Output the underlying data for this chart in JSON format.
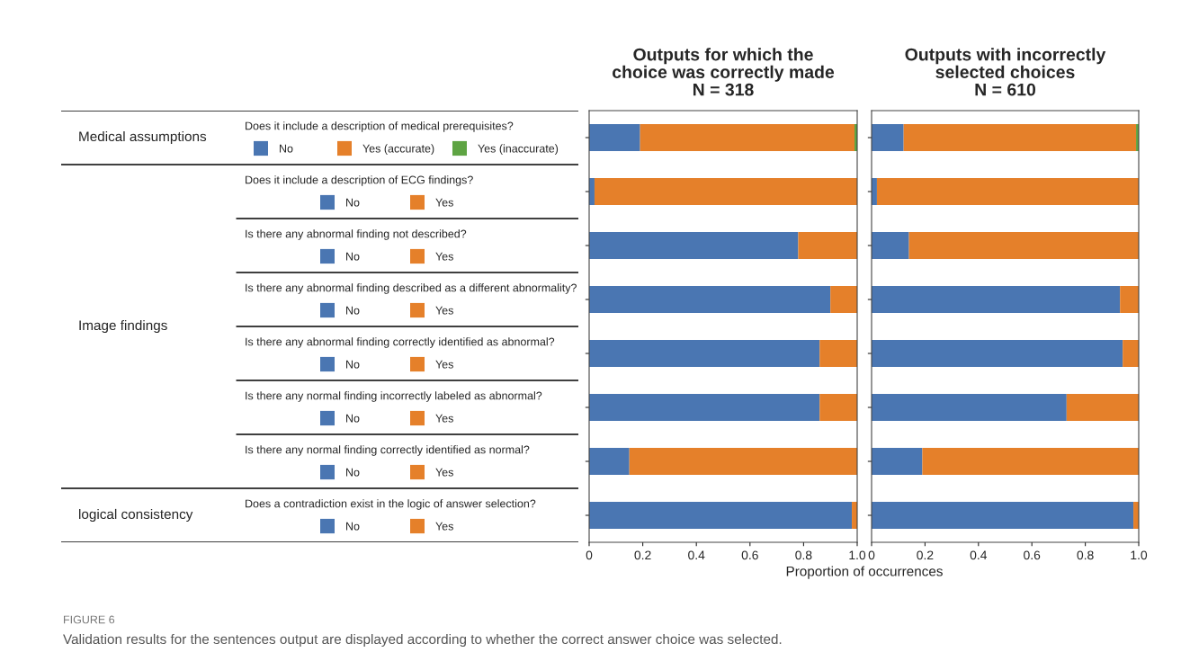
{
  "chart_data": [
    {
      "type": "other",
      "y_categories": [
        "Medical assumptions",
        "Image findings",
        "logical consistency"
      ],
      "categories": [
        "Does it include a description of medical prerequisites?",
        "Does it include a description of ECG findings?",
        "Is there any abnormal finding not described?",
        "Is there any abnormal finding described as a different abnormality?",
        "Is there any abnormal finding correctly identified as abnormal?",
        "Is there any normal finding incorrectly labeled as abnormal?",
        "Is there any normal finding correctly identified as normal?",
        "Does a contradiction exist in the logic of answer selection?"
      ],
      "colors": [
        "#4a76b2",
        "#e5802a",
        "#5ea443",
        "#e5802a"
      ],
      "annotations": [
        "No",
        "Yes (accurate)",
        "Yes (inaccurate)",
        "Yes",
        "FIGURE 6",
        "Validation results for the sentences output are displayed according to whether the correct answer choice was selected."
      ]
    },
    {
      "type": "bar",
      "orientation": "horizontal",
      "stacked": true,
      "title": "Outputs for which the\nchoice was correctly made\nN = 318",
      "xlabel": "Proportion of occurrences",
      "categories": [
        null,
        null,
        null,
        null,
        null,
        null,
        null,
        null
      ],
      "series": [
        {
          "color": "#4a76b2",
          "values": [
            0.19,
            0.02,
            0.78,
            0.9,
            0.86,
            0.86,
            0.15,
            0.98
          ]
        },
        {
          "color": "#e5802a",
          "values": [
            0.8,
            0.98,
            0.22,
            0.1,
            0.14,
            0.14,
            0.85,
            0.02
          ]
        },
        {
          "color": "#5ea443",
          "values": [
            0.01,
            null,
            null,
            null,
            null,
            null,
            null,
            null
          ]
        }
      ],
      "xlim": [
        0,
        1
      ],
      "xticks": [
        0,
        0.2,
        0.4,
        0.6,
        0.8,
        {
          "value": 1,
          "label": "1.0"
        }
      ],
      "tick_labels": "x"
    },
    {
      "type": "bar",
      "orientation": "horizontal",
      "stacked": true,
      "title": "Outputs with incorrectly\nselected choices\nN = 610",
      "categories": [
        null,
        null,
        null,
        null,
        null,
        null,
        null,
        null
      ],
      "series": [
        {
          "color": "#4a76b2",
          "values": [
            0.12,
            0.02,
            0.14,
            0.93,
            0.94,
            0.73,
            0.19,
            0.98
          ]
        },
        {
          "color": "#e5802a",
          "values": [
            0.87,
            0.98,
            0.86,
            0.07,
            0.06,
            0.27,
            0.81,
            0.02
          ]
        },
        {
          "color": "#5ea443",
          "values": [
            0.01,
            null,
            null,
            null,
            null,
            null,
            null,
            null
          ]
        }
      ],
      "xlim": [
        0,
        1
      ],
      "xticks": [
        0,
        0.2,
        0.4,
        0.6,
        0.8,
        {
          "value": 1,
          "label": "1.0"
        }
      ],
      "tick_labels": "x"
    }
  ]
}
